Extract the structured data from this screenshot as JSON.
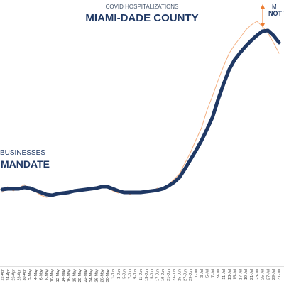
{
  "chart_data": {
    "type": "line",
    "subtitle": "COVID HOSPITALIZATIONS",
    "title": "MIAMI-DADE COUNTY",
    "annotations": [
      "BUSINESSES",
      "MANDATE",
      "M",
      "NOT V"
    ],
    "categories": [
      "22-Apr",
      "24-Apr",
      "26-Apr",
      "28-Apr",
      "30-Apr",
      "2-May",
      "4-May",
      "6-May",
      "8-May",
      "10-May",
      "12-May",
      "14-May",
      "16-May",
      "18-May",
      "20-May",
      "22-May",
      "24-May",
      "26-May",
      "28-May",
      "30-May",
      "1-Jun",
      "3-Jun",
      "5-Jun",
      "7-Jun",
      "9-Jun",
      "11-Jun",
      "13-Jun",
      "15-Jun",
      "17-Jun",
      "19-Jun",
      "21-Jun",
      "23-Jun",
      "25-Jun",
      "27-Jun",
      "29-Jun",
      "1-Jul",
      "3-Jul",
      "5-Jul",
      "7-Jul",
      "9-Jul",
      "11-Jul",
      "13-Jul",
      "15-Jul",
      "17-Jul",
      "19-Jul",
      "21-Jul",
      "23-Jul",
      "25-Jul",
      "27-Jul",
      "29-Jul",
      "31-Jul"
    ],
    "series": [
      {
        "color": "#f4b183",
        "width": 1,
        "values": [
          104,
          112,
          106,
          110,
          115,
          108,
          105,
          100,
          97,
          99,
          104,
          101,
          106,
          104,
          109,
          106,
          110,
          108,
          113,
          111,
          106,
          103,
          106,
          101,
          105,
          103,
          107,
          104,
          110,
          107,
          115,
          122,
          130,
          145,
          160,
          178,
          195,
          220,
          240,
          262,
          282,
          300,
          312,
          322,
          333,
          340,
          345,
          338,
          328,
          315,
          300
        ]
      },
      {
        "color": "#1f3864",
        "width": 5,
        "values": [
          108,
          109,
          109,
          109,
          111,
          110,
          107,
          104,
          101,
          100,
          102,
          103,
          104,
          106,
          107,
          108,
          109,
          110,
          112,
          112,
          109,
          106,
          104,
          104,
          104,
          104,
          105,
          106,
          107,
          109,
          113,
          118,
          125,
          137,
          150,
          163,
          177,
          193,
          210,
          235,
          257,
          277,
          291,
          301,
          310,
          318,
          325,
          331,
          332,
          325,
          315
        ]
      }
    ],
    "ylim": [
      0,
      375
    ],
    "grid": false
  }
}
